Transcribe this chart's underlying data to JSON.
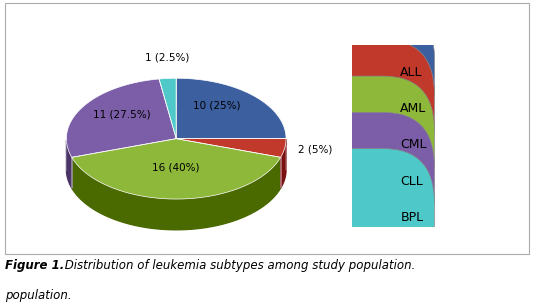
{
  "labels": [
    "ALL",
    "AML",
    "CML",
    "CLL",
    "BPL"
  ],
  "values": [
    10,
    2,
    16,
    11,
    1
  ],
  "percentages": [
    "10 (25%)",
    "2 (5%)",
    "16 (40%)",
    "11 (27.5%)",
    "1 (2.5%)"
  ],
  "colors": [
    "#3c5fa0",
    "#c0392b",
    "#8db83a",
    "#7b5ea7",
    "#4ec8c8"
  ],
  "dark_colors": [
    "#253d6b",
    "#7b1010",
    "#4a6a00",
    "#4a3566",
    "#1a8888"
  ],
  "startangle": 90,
  "chart_bg": "#ffffff",
  "border_color": "#aaaaaa"
}
